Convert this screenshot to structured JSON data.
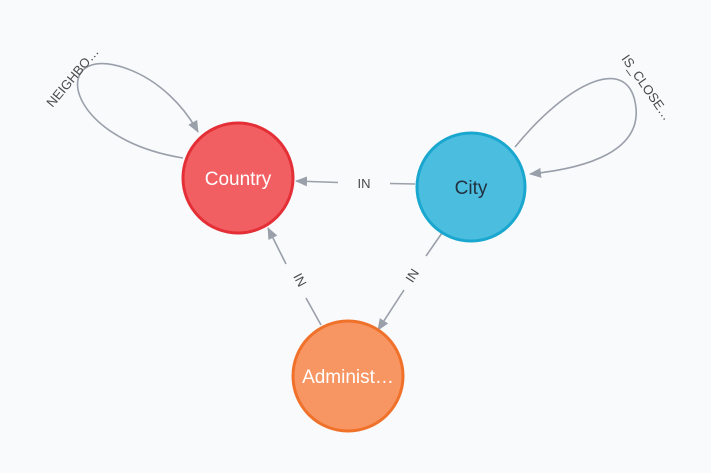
{
  "graph": {
    "nodes": {
      "country": {
        "label": "Country",
        "fill": "#f25f63",
        "stroke": "#e42f36"
      },
      "city": {
        "label": "City",
        "fill": "#4bbddf",
        "stroke": "#1aa7cf"
      },
      "admin": {
        "label": "Administ…",
        "fill": "#f79563",
        "stroke": "#f0712a"
      }
    },
    "edges": {
      "city_country": {
        "label": "IN"
      },
      "city_admin": {
        "label": "IN"
      },
      "admin_country": {
        "label": "IN"
      },
      "country_loop": {
        "label": "NEIGHBO…"
      },
      "city_loop": {
        "label": "IS_CLOSE…"
      }
    },
    "edge_color": "#9aa0aa"
  }
}
